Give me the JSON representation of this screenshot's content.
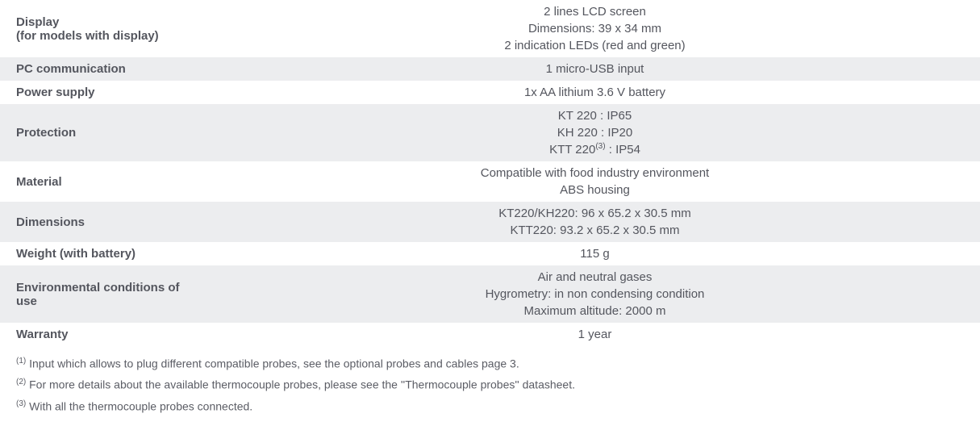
{
  "colors": {
    "shaded_bg": "#ecedef",
    "unshaded_bg": "#ffffff",
    "text": "#54565e"
  },
  "specs": [
    {
      "shaded": false,
      "label_html": "Display<br>(for models with display)",
      "values": [
        "2 lines LCD screen",
        "Dimensions: 39 x 34 mm",
        "2 indication LEDs (red and green)"
      ]
    },
    {
      "shaded": true,
      "label_html": "PC communication",
      "values": [
        "1 micro-USB input"
      ]
    },
    {
      "shaded": false,
      "label_html": "Power supply",
      "values": [
        "1x AA lithium 3.6 V battery"
      ]
    },
    {
      "shaded": true,
      "label_html": "Protection",
      "values": [
        "KT 220 : IP65",
        "KH 220 : IP20",
        "KTT 220<sup class=\"ref\">(3)</sup> : IP54"
      ]
    },
    {
      "shaded": false,
      "label_html": "Material",
      "values": [
        "Compatible with food industry environment",
        "ABS housing"
      ]
    },
    {
      "shaded": true,
      "label_html": "Dimensions",
      "values": [
        "KT220/KH220: 96 x 65.2 x 30.5 mm",
        "KTT220: 93.2 x 65.2 x 30.5 mm"
      ]
    },
    {
      "shaded": false,
      "label_html": "Weight (with battery)",
      "values": [
        "115 g"
      ]
    },
    {
      "shaded": true,
      "label_html": "Environmental conditions of use",
      "values": [
        "Air and neutral gases",
        "Hygrometry: in non condensing condition",
        "Maximum altitude: 2000 m"
      ]
    },
    {
      "shaded": false,
      "label_html": "Warranty",
      "values": [
        "1 year"
      ]
    }
  ],
  "footnotes": [
    {
      "marker": "(1)",
      "text": "Input which allows to plug different compatible probes, see the optional probes and cables page 3."
    },
    {
      "marker": "(2)",
      "text": "For more details about the available thermocouple probes, please see the ''Thermocouple probes'' datasheet."
    },
    {
      "marker": "(3)",
      "text": "With all the thermocouple probes connected."
    }
  ]
}
